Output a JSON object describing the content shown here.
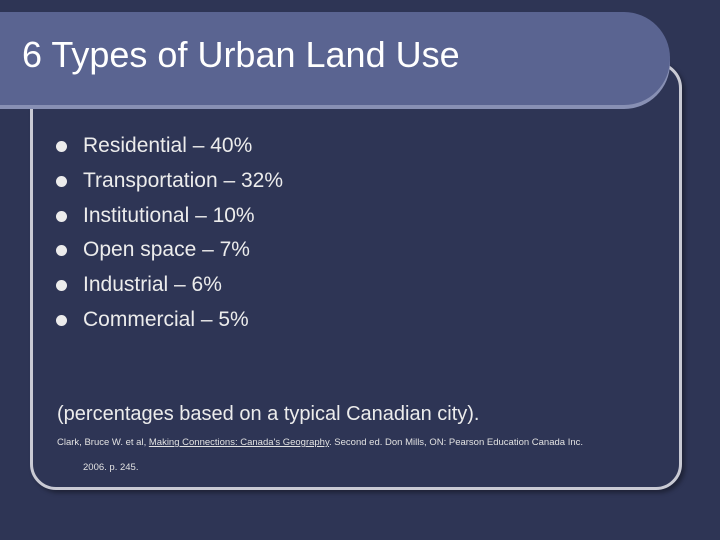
{
  "header": {
    "title": "6 Types of Urban Land Use"
  },
  "bullets": [
    "Residential – 40%",
    "Transportation – 32%",
    "Institutional – 10%",
    "Open space – 7%",
    "Industrial – 6%",
    "Commercial – 5%"
  ],
  "note": "(percentages based on a typical Canadian city).",
  "citation": {
    "authors": "Clark, Bruce W. et al, ",
    "book": "Making Connections: Canada's Geography",
    "publisher": ". Second ed. Don Mills, ON: Pearson Education Canada Inc.",
    "year_page": "2006. p. 245."
  }
}
